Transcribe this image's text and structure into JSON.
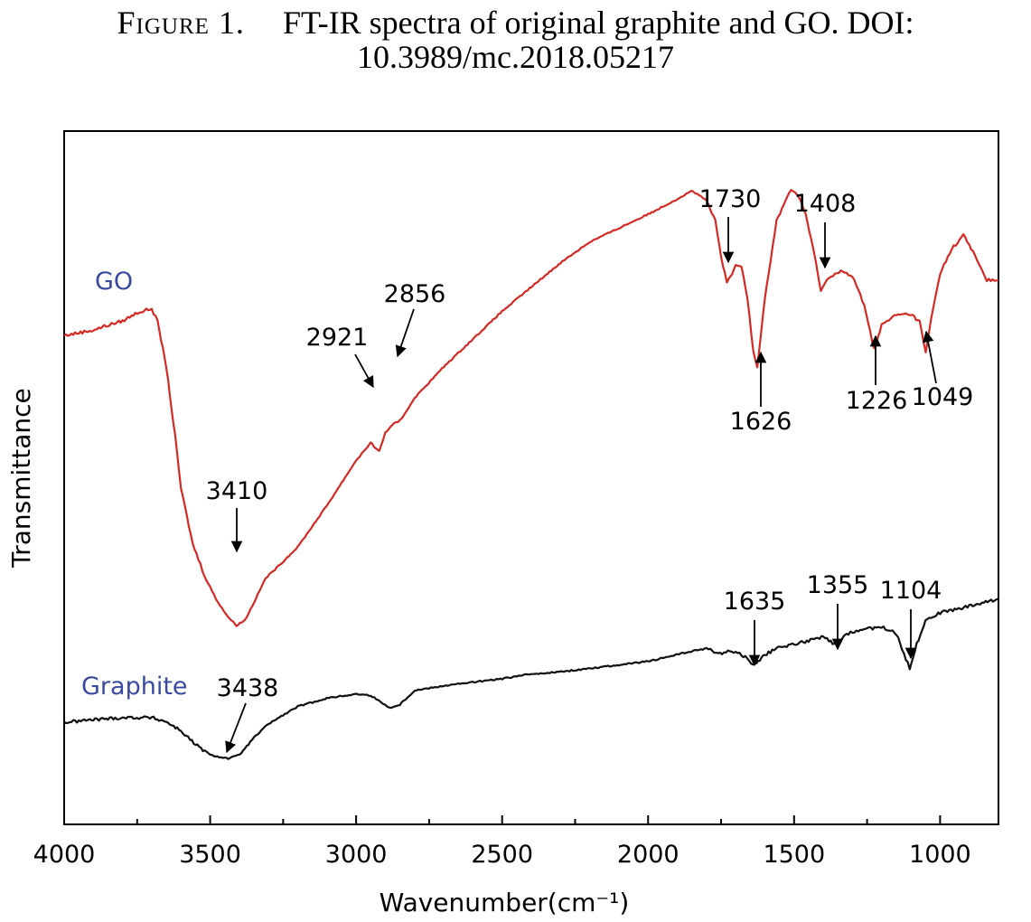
{
  "caption": {
    "label": "Figure 1.",
    "text_line1": "FT-IR spectra of original graphite and GO. DOI:",
    "text_line2": "10.3989/mc.2018.05217"
  },
  "chart_data": {
    "type": "line",
    "title": "",
    "xlabel": "Wavenumber(cm⁻¹)",
    "ylabel": "Transmittance",
    "xlim": [
      4000,
      800
    ],
    "ylim": [
      0,
      100
    ],
    "x_reversed": true,
    "y_ticks_shown": false,
    "grid": false,
    "x_ticks": [
      4000,
      3500,
      3000,
      2500,
      2000,
      1500,
      1000
    ],
    "series": [
      {
        "name": "GO",
        "color": "#d42a24",
        "label_color": "#3a4aa0",
        "points": [
          [
            4000,
            70.5
          ],
          [
            3900,
            71.3
          ],
          [
            3850,
            72.0
          ],
          [
            3800,
            72.6
          ],
          [
            3750,
            73.8
          ],
          [
            3700,
            74.4
          ],
          [
            3680,
            72.5
          ],
          [
            3650,
            66.0
          ],
          [
            3620,
            56.0
          ],
          [
            3600,
            48.5
          ],
          [
            3560,
            40.5
          ],
          [
            3520,
            36.0
          ],
          [
            3480,
            32.5
          ],
          [
            3440,
            30.0
          ],
          [
            3410,
            28.7
          ],
          [
            3380,
            29.5
          ],
          [
            3350,
            32.0
          ],
          [
            3310,
            35.5
          ],
          [
            3260,
            37.5
          ],
          [
            3200,
            40.0
          ],
          [
            3100,
            46.0
          ],
          [
            3000,
            52.5
          ],
          [
            2950,
            55.0
          ],
          [
            2921,
            53.8
          ],
          [
            2900,
            56.5
          ],
          [
            2870,
            57.8
          ],
          [
            2856,
            58.0
          ],
          [
            2840,
            58.8
          ],
          [
            2800,
            61.5
          ],
          [
            2700,
            66.0
          ],
          [
            2600,
            70.0
          ],
          [
            2500,
            74.0
          ],
          [
            2400,
            77.5
          ],
          [
            2300,
            81.0
          ],
          [
            2200,
            84.0
          ],
          [
            2100,
            86.0
          ],
          [
            2000,
            88.0
          ],
          [
            1900,
            90.2
          ],
          [
            1850,
            91.4
          ],
          [
            1800,
            90.0
          ],
          [
            1770,
            87.0
          ],
          [
            1750,
            82.0
          ],
          [
            1730,
            78.0
          ],
          [
            1700,
            80.5
          ],
          [
            1680,
            80.5
          ],
          [
            1660,
            76.0
          ],
          [
            1640,
            68.5
          ],
          [
            1626,
            66.0
          ],
          [
            1600,
            76.0
          ],
          [
            1560,
            87.0
          ],
          [
            1530,
            90.0
          ],
          [
            1510,
            91.5
          ],
          [
            1490,
            91.0
          ],
          [
            1460,
            88.0
          ],
          [
            1430,
            82.0
          ],
          [
            1408,
            77.0
          ],
          [
            1380,
            79.0
          ],
          [
            1340,
            79.8
          ],
          [
            1300,
            79.0
          ],
          [
            1260,
            75.0
          ],
          [
            1226,
            68.5
          ],
          [
            1200,
            72.0
          ],
          [
            1150,
            73.5
          ],
          [
            1100,
            73.6
          ],
          [
            1070,
            72.5
          ],
          [
            1049,
            68.0
          ],
          [
            1030,
            73.0
          ],
          [
            1000,
            79.5
          ],
          [
            960,
            83.0
          ],
          [
            920,
            85.0
          ],
          [
            880,
            82.0
          ],
          [
            840,
            78.5
          ],
          [
            800,
            78.5
          ]
        ]
      },
      {
        "name": "Graphite",
        "color": "#111111",
        "label_color": "#3a4aa0",
        "points": [
          [
            4000,
            14.7
          ],
          [
            3900,
            15.1
          ],
          [
            3800,
            15.4
          ],
          [
            3700,
            15.4
          ],
          [
            3650,
            14.8
          ],
          [
            3600,
            13.5
          ],
          [
            3550,
            11.5
          ],
          [
            3500,
            10.0
          ],
          [
            3438,
            9.5
          ],
          [
            3400,
            10.0
          ],
          [
            3350,
            12.5
          ],
          [
            3300,
            14.5
          ],
          [
            3200,
            17.0
          ],
          [
            3100,
            18.2
          ],
          [
            3000,
            18.8
          ],
          [
            2950,
            18.6
          ],
          [
            2900,
            17.2
          ],
          [
            2880,
            16.8
          ],
          [
            2850,
            17.3
          ],
          [
            2800,
            19.3
          ],
          [
            2700,
            20.0
          ],
          [
            2600,
            20.5
          ],
          [
            2500,
            21.0
          ],
          [
            2400,
            21.7
          ],
          [
            2300,
            22.0
          ],
          [
            2200,
            22.5
          ],
          [
            2100,
            23.0
          ],
          [
            2000,
            23.5
          ],
          [
            1900,
            24.5
          ],
          [
            1800,
            25.4
          ],
          [
            1760,
            24.6
          ],
          [
            1720,
            25.0
          ],
          [
            1680,
            24.5
          ],
          [
            1635,
            23.0
          ],
          [
            1600,
            24.5
          ],
          [
            1550,
            25.5
          ],
          [
            1500,
            26.0
          ],
          [
            1450,
            26.5
          ],
          [
            1400,
            27.0
          ],
          [
            1355,
            25.8
          ],
          [
            1320,
            27.5
          ],
          [
            1280,
            28.0
          ],
          [
            1200,
            28.5
          ],
          [
            1150,
            27.5
          ],
          [
            1104,
            22.5
          ],
          [
            1080,
            26.0
          ],
          [
            1050,
            29.5
          ],
          [
            1000,
            30.5
          ],
          [
            950,
            31.0
          ],
          [
            900,
            31.5
          ],
          [
            850,
            32.0
          ],
          [
            800,
            32.5
          ]
        ]
      }
    ],
    "annotations": [
      {
        "label": "3410",
        "x": 3410,
        "y": 28.7,
        "arrow": "down"
      },
      {
        "label": "2921",
        "x": 2921,
        "y": 54.5,
        "arrow": "down-right"
      },
      {
        "label": "2856",
        "x": 2856,
        "y": 58.0,
        "arrow": "down-left"
      },
      {
        "label": "1730",
        "x": 1730,
        "y": 78.0,
        "arrow": "down"
      },
      {
        "label": "1626",
        "x": 1626,
        "y": 66.0,
        "arrow": "up"
      },
      {
        "label": "1408",
        "x": 1408,
        "y": 77.0,
        "arrow": "down"
      },
      {
        "label": "1226",
        "x": 1226,
        "y": 68.5,
        "arrow": "up"
      },
      {
        "label": "1049",
        "x": 1049,
        "y": 68.0,
        "arrow": "up-left"
      },
      {
        "label": "3438",
        "x": 3438,
        "y": 9.5,
        "arrow": "down-left"
      },
      {
        "label": "1635",
        "x": 1635,
        "y": 23.0,
        "arrow": "down"
      },
      {
        "label": "1355",
        "x": 1355,
        "y": 25.8,
        "arrow": "down"
      },
      {
        "label": "1104",
        "x": 1104,
        "y": 22.5,
        "arrow": "down"
      }
    ]
  }
}
